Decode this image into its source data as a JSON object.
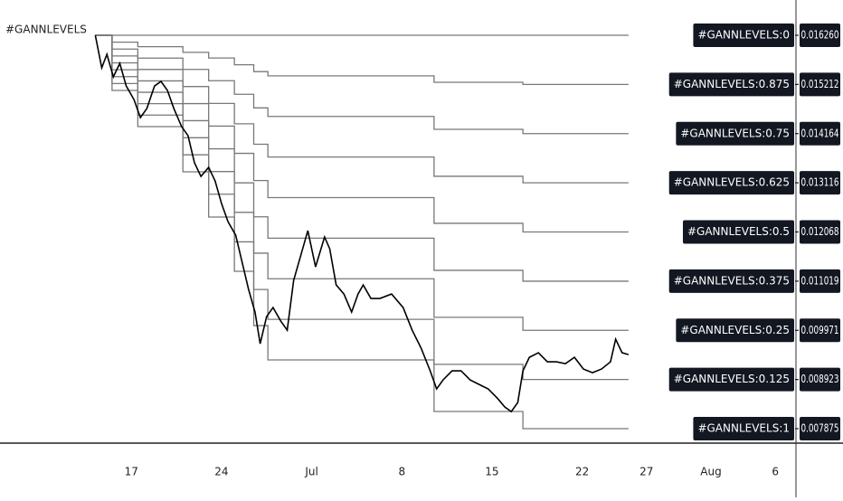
{
  "chart_data": {
    "type": "line",
    "title": "#GANNLEVELS",
    "xlim": [
      6.8,
      68.6
    ],
    "ylim": [
      0.007567,
      0.017012
    ],
    "xticks": [
      {
        "value": 17,
        "label": "17"
      },
      {
        "value": 24,
        "label": "24"
      },
      {
        "value": 31,
        "label": "Jul"
      },
      {
        "value": 38,
        "label": "8"
      },
      {
        "value": 45,
        "label": "15"
      },
      {
        "value": 52,
        "label": "22"
      },
      {
        "value": 57,
        "label": "27"
      },
      {
        "value": 62,
        "label": "Aug"
      },
      {
        "value": 67,
        "label": "6"
      }
    ],
    "price": {
      "color": "#000000",
      "x": [
        14.2,
        14.7,
        15.1,
        15.6,
        16.1,
        16.6,
        17.2,
        17.7,
        18.2,
        18.8,
        19.3,
        19.8,
        20.3,
        20.9,
        21.4,
        21.9,
        22.4,
        23.0,
        23.5,
        24.0,
        24.5,
        25.1,
        25.6,
        26.1,
        26.6,
        27.0,
        27.5,
        28.0,
        28.6,
        29.1,
        29.6,
        30.1,
        30.7,
        31.3,
        32.0,
        32.4,
        32.9,
        33.5,
        34.1,
        34.6,
        35.0,
        35.6,
        36.3,
        37.2,
        38.1,
        38.8,
        39.5,
        40.2,
        40.7,
        41.2,
        41.9,
        42.6,
        43.3,
        44.0,
        44.7,
        45.4,
        46.0,
        46.5,
        47.0,
        47.4,
        47.9,
        48.6,
        49.3,
        50.0,
        50.7,
        51.4,
        52.1,
        52.8,
        53.5,
        54.2,
        54.6,
        55.1,
        55.6
      ],
      "values": [
        0.01626,
        0.015566,
        0.015855,
        0.015373,
        0.015662,
        0.01518,
        0.014891,
        0.014506,
        0.014698,
        0.01518,
        0.015277,
        0.015084,
        0.014698,
        0.014313,
        0.01412,
        0.013542,
        0.013252,
        0.013445,
        0.013156,
        0.012674,
        0.012288,
        0.011999,
        0.011421,
        0.010842,
        0.01036,
        0.009686,
        0.010264,
        0.010457,
        0.010168,
        0.009975,
        0.011035,
        0.011517,
        0.012096,
        0.011324,
        0.011961,
        0.01171,
        0.010939,
        0.010746,
        0.01036,
        0.010746,
        0.010939,
        0.01065,
        0.01065,
        0.010746,
        0.010457,
        0.009975,
        0.009589,
        0.009107,
        0.008722,
        0.008914,
        0.009107,
        0.009107,
        0.008914,
        0.008818,
        0.008722,
        0.008529,
        0.008336,
        0.008239,
        0.008432,
        0.009107,
        0.009396,
        0.009493,
        0.0093,
        0.0093,
        0.009261,
        0.009396,
        0.009146,
        0.009069,
        0.009146,
        0.0093,
        0.009782,
        0.009493,
        0.009454
      ]
    },
    "x": [
      14.2,
      15.5,
      17.5,
      21,
      23,
      25,
      26.5,
      27.6,
      40.5,
      47.4,
      55.6
    ],
    "series": [
      {
        "name": "#GANNLEVELS:0",
        "color": "#787878",
        "values": [
          0.01626,
          0.01626,
          0.01626,
          0.01626,
          0.01626,
          0.01626,
          0.01626,
          0.01626,
          0.01626,
          0.01626,
          0.01626
        ],
        "value_labels": [
          null,
          null,
          null,
          null,
          null,
          null,
          null,
          null,
          null,
          null,
          "0.016260"
        ]
      },
      {
        "name": "#GANNLEVELS:0.875",
        "color": "#787878",
        "values": [
          0.01626,
          0.016113,
          0.016017,
          0.015896,
          0.015776,
          0.015631,
          0.015486,
          0.015395,
          0.015258,
          0.015212,
          0.015212
        ],
        "value_labels": [
          null,
          null,
          null,
          null,
          null,
          null,
          null,
          null,
          null,
          null,
          "0.015212"
        ]
      },
      {
        "name": "#GANNLEVELS:0.75",
        "color": "#787878",
        "values": [
          0.01626,
          0.015966,
          0.015774,
          0.015532,
          0.015292,
          0.015002,
          0.014712,
          0.01453,
          0.014256,
          0.014164,
          0.014164
        ],
        "value_labels": [
          null,
          null,
          null,
          null,
          null,
          null,
          null,
          null,
          null,
          null,
          "0.014164"
        ]
      },
      {
        "name": "#GANNLEVELS:0.625",
        "color": "#787878",
        "values": [
          0.01626,
          0.015819,
          0.015531,
          0.015168,
          0.014808,
          0.014373,
          0.013938,
          0.013665,
          0.013254,
          0.013116,
          0.013116
        ],
        "value_labels": [
          null,
          null,
          null,
          null,
          null,
          null,
          null,
          null,
          null,
          null,
          "0.013116"
        ]
      },
      {
        "name": "#GANNLEVELS:0.5",
        "color": "#787878",
        "values": [
          0.01626,
          0.015672,
          0.015288,
          0.014804,
          0.014324,
          0.013744,
          0.013164,
          0.0128,
          0.012252,
          0.012068,
          0.012068
        ],
        "value_labels": [
          null,
          null,
          null,
          null,
          null,
          null,
          null,
          null,
          null,
          null,
          "0.012068"
        ]
      },
      {
        "name": "#GANNLEVELS:0.375",
        "color": "#787878",
        "values": [
          0.01626,
          0.015525,
          0.015045,
          0.01444,
          0.01384,
          0.013115,
          0.01239,
          0.011935,
          0.01125,
          0.011019,
          0.011019
        ],
        "value_labels": [
          null,
          null,
          null,
          null,
          null,
          null,
          null,
          null,
          null,
          null,
          "0.011019"
        ]
      },
      {
        "name": "#GANNLEVELS:0.25",
        "color": "#787878",
        "values": [
          0.01626,
          0.015378,
          0.014802,
          0.014076,
          0.013356,
          0.012486,
          0.011616,
          0.01107,
          0.010248,
          0.009971,
          0.009971
        ],
        "value_labels": [
          null,
          null,
          null,
          null,
          null,
          null,
          null,
          null,
          null,
          null,
          "0.009971"
        ]
      },
      {
        "name": "#GANNLEVELS:0.125",
        "color": "#787878",
        "values": [
          0.01626,
          0.015231,
          0.014559,
          0.013712,
          0.012872,
          0.011857,
          0.010842,
          0.010205,
          0.009246,
          0.008923,
          0.008923
        ],
        "value_labels": [
          null,
          null,
          null,
          null,
          null,
          null,
          null,
          null,
          null,
          null,
          "0.008923"
        ]
      },
      {
        "name": "#GANNLEVELS:1",
        "color": "#787878",
        "values": [
          0.01626,
          0.015084,
          0.014313,
          0.013349,
          0.012386,
          0.011229,
          0.010072,
          0.00934,
          0.008241,
          0.007875,
          0.007875
        ],
        "value_labels": [
          null,
          null,
          null,
          null,
          null,
          null,
          null,
          null,
          null,
          null,
          "0.007875"
        ]
      }
    ]
  }
}
